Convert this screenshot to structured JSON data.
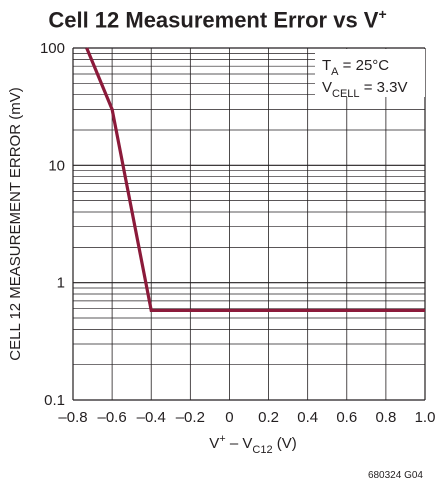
{
  "chart_data": {
    "type": "line",
    "title": "Cell 12 Measurement Error vs V",
    "title_sup": "+",
    "xlabel": {
      "main": "V",
      "sup": "+",
      "mid": " – V",
      "sub": "C12",
      "unit": " (V)"
    },
    "ylabel": "CELL 12 MEASUREMENT ERROR (mV)",
    "x_ticks": [
      "–0.8",
      "–0.6",
      "–0.4",
      "–0.2",
      "0",
      "0.2",
      "0.4",
      "0.6",
      "0.8",
      "1.0"
    ],
    "x_tick_values": [
      -0.8,
      -0.6,
      -0.4,
      -0.2,
      0,
      0.2,
      0.4,
      0.6,
      0.8,
      1.0
    ],
    "y_ticks": [
      "100",
      "10",
      "1",
      "0.1"
    ],
    "y_tick_values": [
      100,
      10,
      1,
      0.1
    ],
    "xlim": [
      -0.8,
      1.0
    ],
    "ylim": [
      0.1,
      100
    ],
    "y_scale": "log",
    "grid": true,
    "series": [
      {
        "x": [
          -0.73,
          -0.6,
          -0.4,
          1.0
        ],
        "y": [
          100,
          30,
          0.58,
          0.58
        ]
      }
    ],
    "annotations": [
      {
        "main": "T",
        "sub": "A",
        "rest": " = 25°C"
      },
      {
        "main": "V",
        "sub": "CELL",
        "rest": " = 3.3V"
      }
    ],
    "footnote": "680324 G04"
  },
  "colors": {
    "series": "#8b1a3a",
    "grid": "#231f20",
    "text": "#231f20"
  }
}
